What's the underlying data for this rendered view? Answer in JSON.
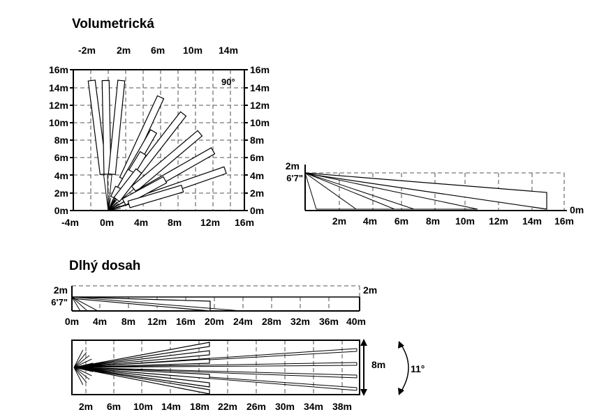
{
  "volumetric": {
    "title": "Volumetrická",
    "top_axis_labels": [
      "-2m",
      "2m",
      "6m",
      "10m",
      "14m"
    ],
    "bottom_axis_labels": [
      "-4m",
      "0m",
      "4m",
      "8m",
      "12m",
      "16m"
    ],
    "left_axis_labels": [
      "0m",
      "2m",
      "4m",
      "6m",
      "8m",
      "10m",
      "12m",
      "14m",
      "16m"
    ],
    "right_axis_labels": [
      "0m",
      "2m",
      "4m",
      "6m",
      "8m",
      "10m",
      "12m",
      "14m",
      "16m"
    ],
    "angle_label": "90°",
    "side_view": {
      "height_label_top": "2m",
      "height_label_bottom": "6'7\"",
      "right_label": "0m",
      "bottom_axis_labels": [
        "2m",
        "4m",
        "6m",
        "8m",
        "10m",
        "12m",
        "14m",
        "16m"
      ]
    }
  },
  "long_range": {
    "title": "Dlhý dosah",
    "side_view": {
      "left_label_top": "2m",
      "left_label_bottom": "6'7\"",
      "right_label": "2m",
      "bottom_axis_labels": [
        "0m",
        "4m",
        "8m",
        "12m",
        "16m",
        "20m",
        "24m",
        "28m",
        "32m",
        "36m",
        "40m"
      ]
    },
    "top_view": {
      "bottom_axis_labels": [
        "2m",
        "6m",
        "10m",
        "14m",
        "18m",
        "22m",
        "26m",
        "30m",
        "34m",
        "38m"
      ],
      "width_label": "8m",
      "angle_label": "11°"
    }
  }
}
